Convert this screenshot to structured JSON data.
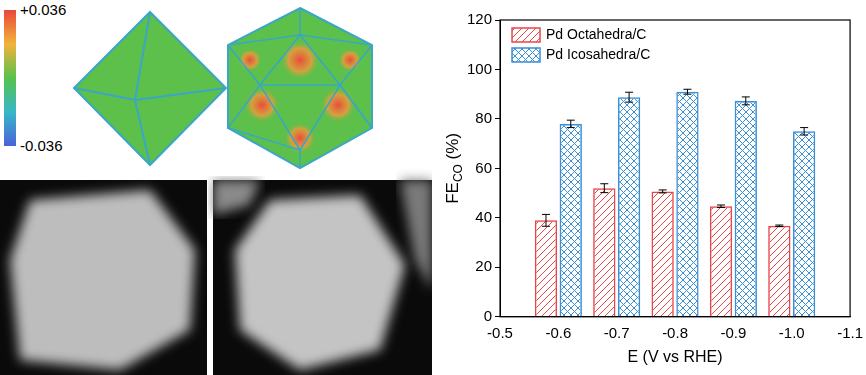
{
  "chart_data": {
    "type": "bar",
    "x_label": "E (V vs RHE)",
    "y_label": [
      "FE",
      "CO",
      " (%)"
    ],
    "x": [
      -0.6,
      -0.7,
      -0.8,
      -0.9,
      -1
    ],
    "series": [
      {
        "name": "Pd Octahedra/C",
        "color": "#e8474a",
        "values": [
          39,
          52,
          50.7,
          44.7,
          36.8
        ],
        "errors": [
          2.4,
          1.8,
          0.6,
          0.5,
          0.3
        ]
      },
      {
        "name": "Pd Icosahedra/C",
        "color": "#3a8fd6",
        "values": [
          78,
          88.8,
          91,
          87.3,
          75
        ],
        "errors": [
          1.5,
          2.0,
          1.0,
          1.6,
          1.5
        ]
      }
    ],
    "xlim": [
      -0.5,
      -1.1
    ],
    "xticks": [
      -0.5,
      -0.6,
      -0.7,
      -0.8,
      -0.9,
      {
        "value": -1,
        "label": "-1.0"
      },
      -1.1
    ],
    "ylim": [
      0,
      120
    ],
    "yticks": [
      0,
      20,
      40,
      60,
      80,
      100,
      120
    ],
    "grid": false,
    "legend": "upper left"
  },
  "colorbar": {
    "range": [
      -0.036,
      0.036
    ],
    "ticks": [
      {
        "value": 0.036,
        "label": "+0.036"
      },
      -0.036
    ]
  }
}
